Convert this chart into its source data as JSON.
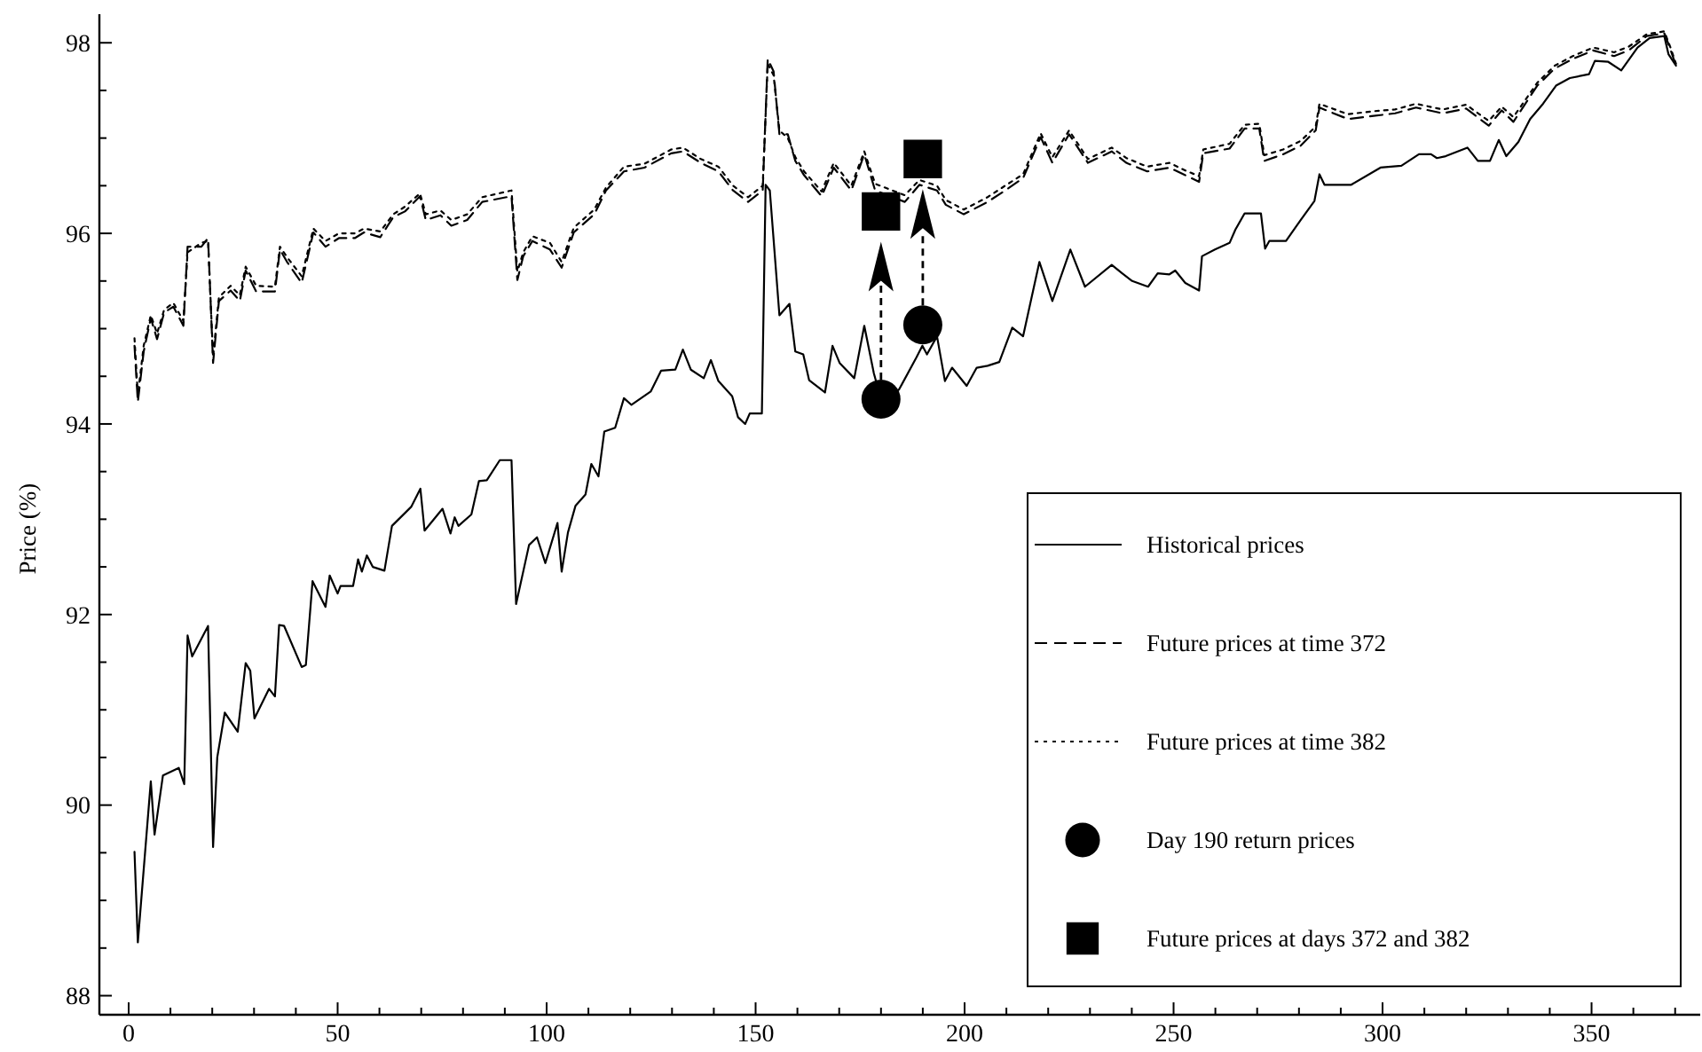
{
  "chart_data": {
    "type": "line",
    "ylabel": "Price (%)",
    "xlim": [
      -7,
      376
    ],
    "ylim": [
      87.8,
      98.3
    ],
    "xticks": [
      0,
      {
        "value": 10,
        "label": null
      },
      {
        "value": 20,
        "label": null
      },
      {
        "value": 30,
        "label": null
      },
      {
        "value": 40,
        "label": null
      },
      50,
      {
        "value": 60,
        "label": null
      },
      {
        "value": 70,
        "label": null
      },
      {
        "value": 80,
        "label": null
      },
      {
        "value": 90,
        "label": null
      },
      100,
      {
        "value": 110,
        "label": null
      },
      {
        "value": 120,
        "label": null
      },
      {
        "value": 130,
        "label": null
      },
      {
        "value": 140,
        "label": null
      },
      150,
      {
        "value": 160,
        "label": null
      },
      {
        "value": 170,
        "label": null
      },
      {
        "value": 180,
        "label": null
      },
      {
        "value": 190,
        "label": null
      },
      200,
      {
        "value": 210,
        "label": null
      },
      {
        "value": 220,
        "label": null
      },
      {
        "value": 230,
        "label": null
      },
      {
        "value": 240,
        "label": null
      },
      250,
      {
        "value": 260,
        "label": null
      },
      {
        "value": 270,
        "label": null
      },
      {
        "value": 280,
        "label": null
      },
      {
        "value": 290,
        "label": null
      },
      300,
      {
        "value": 310,
        "label": null
      },
      {
        "value": 320,
        "label": null
      },
      {
        "value": 330,
        "label": null
      },
      {
        "value": 340,
        "label": null
      },
      350,
      {
        "value": 360,
        "label": null
      },
      {
        "value": 370,
        "label": null
      }
    ],
    "yticks": [
      88,
      {
        "value": 88.5,
        "label": null
      },
      {
        "value": 89,
        "label": null
      },
      {
        "value": 89.5,
        "label": null
      },
      90,
      {
        "value": 90.5,
        "label": null
      },
      {
        "value": 91,
        "label": null
      },
      {
        "value": 91.5,
        "label": null
      },
      92,
      {
        "value": 92.5,
        "label": null
      },
      {
        "value": 93,
        "label": null
      },
      {
        "value": 93.5,
        "label": null
      },
      94,
      {
        "value": 94.5,
        "label": null
      },
      {
        "value": 95,
        "label": null
      },
      {
        "value": 95.5,
        "label": null
      },
      96,
      {
        "value": 96.5,
        "label": null
      },
      {
        "value": 97,
        "label": null
      },
      {
        "value": 97.5,
        "label": null
      },
      98
    ],
    "grid": false,
    "legend": "bottom right",
    "marker": "none",
    "series": [
      {
        "name": "Historical prices",
        "line_style": "solid",
        "color": "#000000",
        "x": [
          1.4,
          2.2,
          5.3,
          6.2,
          8.2,
          12.0,
          13.3,
          14.1,
          15.2,
          19.0,
          20.2,
          21.2,
          23.0,
          26.1,
          28.0,
          29.1,
          30.1,
          33.6,
          35.0,
          36.0,
          37.2,
          41.4,
          42.4,
          44.0,
          47.1,
          48.1,
          50.0,
          50.7,
          53.7,
          54.9,
          55.8,
          57.0,
          58.4,
          61.2,
          63.0,
          67.6,
          69.8,
          70.8,
          75.1,
          77.0,
          78.0,
          78.9,
          82.0,
          83.8,
          85.7,
          88.8,
          91.6,
          92.7,
          95.8,
          97.7,
          99.7,
          102.6,
          103.6,
          105.1,
          106.9,
          109.3,
          110.7,
          112.4,
          113.8,
          116.4,
          118.5,
          120.3,
          124.9,
          127.4,
          130.8,
          132.6,
          134.5,
          137.6,
          139.3,
          141.1,
          144.4,
          145.8,
          147.5,
          148.6,
          151.5,
          152.4,
          153.4,
          155.7,
          158.1,
          159.5,
          161.4,
          162.8,
          166.6,
          168.4,
          170.1,
          173.6,
          176.0,
          178.3,
          180.0,
          184.3,
          188.5,
          189.9,
          191.0,
          193.4,
          195.3,
          197.0,
          200.5,
          202.9,
          205.5,
          208.3,
          211.4,
          214.0,
          217.9,
          221.0,
          225.3,
          228.8,
          235.2,
          237.7,
          240.1,
          243.9,
          246.2,
          249.0,
          250.4,
          252.8,
          256.1,
          256.8,
          259.9,
          263.4,
          264.8,
          267.0,
          270.9,
          271.9,
          272.9,
          276.9,
          280.4,
          283.7,
          284.9,
          286.1,
          292.5,
          299.5,
          304.5,
          308.7,
          311.6,
          313.0,
          315.1,
          320.3,
          322.8,
          325.7,
          327.8,
          329.6,
          332.5,
          335.3,
          338.4,
          341.5,
          344.8,
          349.4,
          350.8,
          354.0,
          357.1,
          361.0,
          363.9,
          367.4,
          368.4,
          370.2
        ],
        "values": [
          89.51,
          88.56,
          90.25,
          89.69,
          90.31,
          90.39,
          90.22,
          91.78,
          91.56,
          91.88,
          89.56,
          90.5,
          90.97,
          90.77,
          91.49,
          91.41,
          90.91,
          91.22,
          91.14,
          91.89,
          91.88,
          91.45,
          91.47,
          92.35,
          92.08,
          92.41,
          92.22,
          92.3,
          92.3,
          92.58,
          92.45,
          92.62,
          92.5,
          92.46,
          92.93,
          93.13,
          93.32,
          92.88,
          93.11,
          92.85,
          93.02,
          92.93,
          93.05,
          93.4,
          93.41,
          93.62,
          93.62,
          92.11,
          92.73,
          92.81,
          92.54,
          92.96,
          92.45,
          92.86,
          93.14,
          93.26,
          93.58,
          93.45,
          93.92,
          93.96,
          94.27,
          94.2,
          94.34,
          94.56,
          94.57,
          94.78,
          94.57,
          94.48,
          94.67,
          94.45,
          94.29,
          94.07,
          94.0,
          94.11,
          94.11,
          96.51,
          96.45,
          95.14,
          95.26,
          94.76,
          94.73,
          94.46,
          94.33,
          94.82,
          94.64,
          94.48,
          95.03,
          94.53,
          94.26,
          94.36,
          94.7,
          94.82,
          94.73,
          94.92,
          94.45,
          94.59,
          94.4,
          94.59,
          94.61,
          94.65,
          95.01,
          94.92,
          95.7,
          95.29,
          95.83,
          95.44,
          95.67,
          95.58,
          95.5,
          95.44,
          95.58,
          95.57,
          95.61,
          95.48,
          95.4,
          95.76,
          95.83,
          95.9,
          96.04,
          96.21,
          96.21,
          95.84,
          95.92,
          95.92,
          96.14,
          96.34,
          96.62,
          96.51,
          96.51,
          96.69,
          96.71,
          96.83,
          96.83,
          96.79,
          96.81,
          96.9,
          96.76,
          96.76,
          96.98,
          96.81,
          96.96,
          97.2,
          97.36,
          97.55,
          97.63,
          97.67,
          97.81,
          97.8,
          97.71,
          97.95,
          98.05,
          98.07,
          97.88,
          97.76
        ]
      },
      {
        "name": "Future prices at time 372",
        "line_style": "dashed",
        "color": "#000000",
        "x": [
          1.4,
          2.2,
          3.6,
          5.3,
          6.8,
          8.5,
          10.7,
          13.1,
          14.1,
          17.4,
          19.0,
          20.2,
          21.6,
          24.4,
          26.6,
          28.0,
          30.5,
          35.0,
          36.2,
          37.9,
          41.4,
          44.2,
          47.1,
          50.3,
          54.1,
          56.3,
          60.2,
          63.3,
          66.1,
          69.7,
          71.1,
          74.6,
          77.2,
          81.0,
          84.6,
          91.6,
          93.0,
          94.4,
          96.6,
          100.8,
          103.6,
          106.5,
          111.4,
          114.2,
          118.5,
          123.4,
          129.8,
          132.6,
          136.9,
          141.1,
          144.6,
          148.2,
          151.7,
          152.9,
          154.3,
          155.7,
          157.7,
          159.5,
          161.6,
          165.8,
          168.7,
          172.9,
          176.0,
          178.6,
          185.7,
          189.2,
          193.4,
          195.5,
          199.8,
          205.5,
          209.7,
          214.0,
          218.2,
          221.0,
          225.0,
          229.5,
          235.2,
          238.7,
          243.7,
          249.0,
          252.8,
          256.1,
          257.1,
          263.4,
          267.0,
          270.5,
          271.7,
          276.2,
          280.4,
          284.0,
          284.9,
          291.7,
          297.4,
          303.0,
          308.0,
          314.4,
          320.0,
          325.4,
          328.5,
          331.3,
          337.0,
          341.2,
          345.5,
          350.4,
          355.4,
          358.9,
          363.2,
          367.4,
          368.8,
          370.2
        ],
        "values": [
          94.82,
          94.23,
          94.76,
          95.11,
          94.89,
          95.17,
          95.23,
          95.03,
          95.86,
          95.86,
          95.95,
          94.64,
          95.29,
          95.4,
          95.29,
          95.61,
          95.39,
          95.39,
          95.83,
          95.7,
          95.48,
          96.01,
          95.86,
          95.95,
          95.95,
          96.01,
          95.96,
          96.17,
          96.23,
          96.39,
          96.14,
          96.19,
          96.08,
          96.14,
          96.33,
          96.39,
          95.51,
          95.76,
          95.92,
          95.83,
          95.64,
          96.01,
          96.2,
          96.45,
          96.65,
          96.69,
          96.84,
          96.86,
          96.74,
          96.65,
          96.45,
          96.33,
          96.45,
          97.83,
          97.7,
          97.04,
          97.04,
          96.76,
          96.61,
          96.39,
          96.69,
          96.45,
          96.83,
          96.45,
          96.33,
          96.51,
          96.45,
          96.3,
          96.2,
          96.33,
          96.45,
          96.58,
          97.01,
          96.74,
          97.04,
          96.74,
          96.86,
          96.74,
          96.65,
          96.69,
          96.61,
          96.54,
          96.84,
          96.89,
          97.1,
          97.1,
          96.76,
          96.83,
          96.92,
          97.08,
          97.32,
          97.2,
          97.23,
          97.26,
          97.32,
          97.26,
          97.31,
          97.13,
          97.29,
          97.17,
          97.55,
          97.73,
          97.83,
          97.92,
          97.86,
          97.92,
          98.07,
          98.1,
          97.94,
          97.76
        ]
      },
      {
        "name": "Future prices at time 382",
        "line_style": "dotted",
        "color": "#000000",
        "x": [
          1.4,
          2.2,
          3.6,
          5.3,
          6.8,
          8.5,
          10.7,
          13.1,
          14.1,
          17.4,
          19.0,
          20.2,
          21.6,
          24.4,
          26.6,
          28.0,
          30.5,
          35.0,
          36.2,
          37.9,
          41.4,
          44.2,
          47.1,
          50.3,
          54.1,
          56.3,
          60.2,
          63.3,
          66.1,
          69.7,
          71.1,
          74.6,
          77.2,
          81.0,
          84.6,
          91.6,
          93.0,
          94.4,
          96.6,
          100.8,
          103.6,
          106.5,
          111.4,
          114.2,
          118.5,
          123.4,
          129.8,
          132.6,
          136.9,
          141.1,
          144.6,
          148.2,
          151.7,
          152.9,
          154.3,
          155.7,
          157.7,
          159.5,
          161.6,
          165.8,
          168.7,
          172.9,
          176.0,
          178.6,
          185.7,
          189.2,
          193.4,
          195.5,
          199.8,
          205.5,
          209.7,
          214.0,
          218.2,
          221.0,
          225.0,
          229.5,
          235.2,
          238.7,
          243.7,
          249.0,
          252.8,
          256.1,
          257.1,
          263.4,
          267.0,
          270.5,
          271.7,
          276.2,
          280.4,
          284.0,
          284.9,
          291.7,
          297.4,
          303.0,
          308.0,
          314.4,
          320.0,
          325.4,
          328.5,
          331.3,
          337.0,
          341.2,
          345.5,
          350.4,
          355.4,
          358.9,
          363.2,
          367.4,
          368.8,
          370.2
        ],
        "values": [
          94.9,
          94.3,
          94.82,
          95.14,
          94.95,
          95.2,
          95.27,
          95.08,
          95.8,
          95.9,
          95.92,
          94.7,
          95.33,
          95.45,
          95.35,
          95.65,
          95.45,
          95.44,
          95.86,
          95.75,
          95.55,
          96.05,
          95.92,
          96.0,
          96.0,
          96.05,
          96.02,
          96.2,
          96.28,
          96.42,
          96.2,
          96.24,
          96.14,
          96.2,
          96.38,
          96.45,
          95.6,
          95.8,
          95.97,
          95.9,
          95.7,
          96.06,
          96.25,
          96.48,
          96.7,
          96.73,
          96.88,
          96.9,
          96.78,
          96.7,
          96.5,
          96.38,
          96.5,
          97.78,
          97.66,
          97.08,
          97.0,
          96.8,
          96.65,
          96.44,
          96.74,
          96.5,
          96.86,
          96.52,
          96.4,
          96.56,
          96.5,
          96.35,
          96.25,
          96.38,
          96.5,
          96.62,
          97.05,
          96.8,
          97.08,
          96.78,
          96.9,
          96.79,
          96.7,
          96.74,
          96.66,
          96.6,
          96.88,
          96.94,
          97.14,
          97.15,
          96.82,
          96.88,
          96.97,
          97.12,
          97.36,
          97.25,
          97.28,
          97.3,
          97.36,
          97.3,
          97.35,
          97.18,
          97.33,
          97.22,
          97.58,
          97.76,
          97.86,
          97.95,
          97.9,
          97.96,
          98.09,
          98.12,
          97.96,
          97.78
        ]
      },
      {
        "name": "Day 190 return prices",
        "type": "scatter",
        "marker": "circle",
        "color": "#000000",
        "x": [
          180,
          190
        ],
        "values": [
          94.26,
          95.04
        ]
      },
      {
        "name": "Future prices at days 372 and 382",
        "type": "scatter",
        "marker": "square",
        "color": "#000000",
        "x": [
          180,
          190
        ],
        "values": [
          96.23,
          96.78
        ]
      }
    ]
  }
}
